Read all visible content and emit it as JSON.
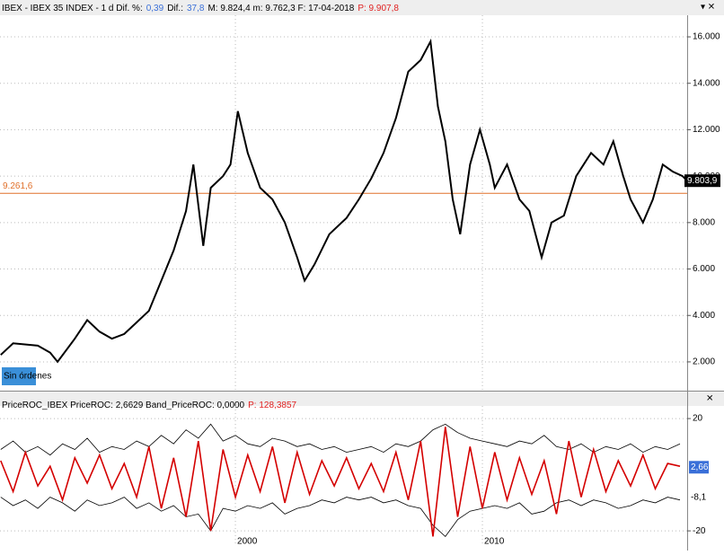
{
  "chart_data": [
    {
      "type": "line",
      "header": [
        {
          "text": "IBEX - IBEX 35 INDEX - 1 d  Dif. %:",
          "color": "#000000"
        },
        {
          "text": "0,39",
          "color": "#3a6fd8"
        },
        {
          "text": "Dif.:",
          "color": "#000000"
        },
        {
          "text": "37,8",
          "color": "#3a6fd8"
        },
        {
          "text": "M: 9.824,4  m: 9.762,3  F: 17-04-2018",
          "color": "#000000"
        },
        {
          "text": "P: 9.907,8",
          "color": "#e02020"
        }
      ],
      "button": "Sin órdenes",
      "xlim": [
        1990.47,
        2018.29
      ],
      "xticks": [
        2000,
        2010
      ],
      "ylim": [
        760,
        16930
      ],
      "yticks": [
        {
          "value": 2000,
          "label": "2.000"
        },
        {
          "value": 4000,
          "label": "4.000"
        },
        {
          "value": 6000,
          "label": "6.000"
        },
        {
          "value": 8000,
          "label": "8.000"
        },
        {
          "value": 10000,
          "label": "10.000"
        },
        {
          "value": 12000,
          "label": "12.000"
        },
        {
          "value": 14000,
          "label": "14.000"
        },
        {
          "value": 16000,
          "label": "16.000"
        }
      ],
      "grid": true,
      "reference_line": {
        "value": 9261.6,
        "label": "9.261,6",
        "color": "#e0702a"
      },
      "last_price": {
        "value": 9803.9,
        "label": "9.803,9"
      },
      "series": [
        {
          "color": "#000000",
          "x": [
            1990.5,
            1991,
            1992,
            1992.5,
            1992.8,
            1993.5,
            1994,
            1994.5,
            1995,
            1995.5,
            1996,
            1996.5,
            1997,
            1997.5,
            1998,
            1998.3,
            1998.7,
            1999,
            1999.5,
            1999.8,
            2000.1,
            2000.5,
            2001,
            2001.5,
            2002,
            2002.5,
            2002.8,
            2003.2,
            2003.8,
            2004.5,
            2005,
            2005.5,
            2006,
            2006.5,
            2007,
            2007.5,
            2007.9,
            2008.2,
            2008.5,
            2008.8,
            2009.1,
            2009.5,
            2009.9,
            2010.3,
            2010.5,
            2011,
            2011.5,
            2011.9,
            2012.4,
            2012.8,
            2013.3,
            2013.8,
            2014.4,
            2014.9,
            2015.3,
            2015.7,
            2016,
            2016.5,
            2016.9,
            2017.3,
            2017.7,
            2018.1,
            2018.29
          ],
          "values": [
            2300,
            2800,
            2700,
            2400,
            2000,
            3000,
            3800,
            3300,
            3000,
            3200,
            3700,
            4200,
            5500,
            6800,
            8500,
            10500,
            7000,
            9500,
            10000,
            10500,
            12800,
            11000,
            9500,
            9000,
            8000,
            6500,
            5500,
            6200,
            7500,
            8200,
            9000,
            9900,
            11000,
            12500,
            14500,
            15000,
            15800,
            13000,
            11500,
            9000,
            7500,
            10500,
            12000,
            10500,
            9500,
            10500,
            9000,
            8500,
            6500,
            8000,
            8300,
            10000,
            11000,
            10500,
            11500,
            10000,
            9000,
            8000,
            9000,
            10500,
            10200,
            10000,
            9800
          ]
        }
      ]
    },
    {
      "type": "line",
      "header": [
        {
          "text": "PriceROC_IBEX  PriceROC: 2,6629  Band_PriceROC: 0,0000",
          "color": "#000000"
        },
        {
          "text": "P: 128,3857",
          "color": "#e02020"
        }
      ],
      "xlim": [
        1990.47,
        2018.29
      ],
      "xticks": [
        2000,
        2010
      ],
      "ylim": [
        -25.4,
        24.5
      ],
      "yticks": [
        -20,
        20
      ],
      "grid": true,
      "markers": [
        {
          "value": 2.66,
          "label": "2,66",
          "color": "#3a6fd8"
        },
        {
          "value": -8.1,
          "label": "-8,1",
          "color": "#ffffff"
        }
      ],
      "x": [
        1990.5,
        1991,
        1991.5,
        1992,
        1992.5,
        1993,
        1993.5,
        1994,
        1994.5,
        1995,
        1995.5,
        1996,
        1996.5,
        1997,
        1997.5,
        1998,
        1998.5,
        1999,
        1999.5,
        2000,
        2000.5,
        2001,
        2001.5,
        2002,
        2002.5,
        2003,
        2003.5,
        2004,
        2004.5,
        2005,
        2005.5,
        2006,
        2006.5,
        2007,
        2007.5,
        2008,
        2008.5,
        2009,
        2009.5,
        2010,
        2010.5,
        2011,
        2011.5,
        2012,
        2012.5,
        2013,
        2013.5,
        2014,
        2014.5,
        2015,
        2015.5,
        2016,
        2016.5,
        2017,
        2017.5,
        2018
      ],
      "series": [
        {
          "color": "#000000",
          "values": [
            9,
            12,
            8,
            10,
            7,
            11,
            9,
            13,
            8,
            10,
            9,
            12,
            10,
            14,
            11,
            16,
            13,
            18,
            12,
            14,
            11,
            10,
            13,
            12,
            10,
            11,
            9,
            10,
            8,
            9,
            10,
            8,
            11,
            10,
            12,
            16,
            18,
            15,
            13,
            12,
            11,
            10,
            12,
            11,
            14,
            10,
            9,
            11,
            8,
            10,
            9,
            11,
            8,
            10,
            9,
            11
          ]
        },
        {
          "color": "#000000",
          "values": [
            -8,
            -11,
            -9,
            -12,
            -8,
            -10,
            -13,
            -9,
            -11,
            -10,
            -8,
            -12,
            -10,
            -13,
            -11,
            -15,
            -14,
            -20,
            -12,
            -13,
            -11,
            -12,
            -10,
            -14,
            -12,
            -11,
            -9,
            -10,
            -8,
            -9,
            -8,
            -10,
            -9,
            -11,
            -12,
            -18,
            -22,
            -16,
            -13,
            -12,
            -11,
            -12,
            -10,
            -14,
            -13,
            -10,
            -9,
            -11,
            -9,
            -10,
            -12,
            -11,
            -9,
            -10,
            -8,
            -9
          ]
        },
        {
          "color": "#d40000",
          "values": [
            5,
            -6,
            8,
            -4,
            3,
            -9,
            6,
            -3,
            7,
            -5,
            4,
            -8,
            10,
            -12,
            6,
            -15,
            12,
            -20,
            9,
            -8,
            7,
            -6,
            10,
            -10,
            8,
            -7,
            5,
            -4,
            6,
            -5,
            4,
            -6,
            8,
            -9,
            12,
            -22,
            17,
            -15,
            10,
            -12,
            8,
            -9,
            6,
            -7,
            5,
            -14,
            12,
            -8,
            9,
            -6,
            5,
            -4,
            7,
            -5,
            4,
            3
          ]
        }
      ]
    }
  ]
}
